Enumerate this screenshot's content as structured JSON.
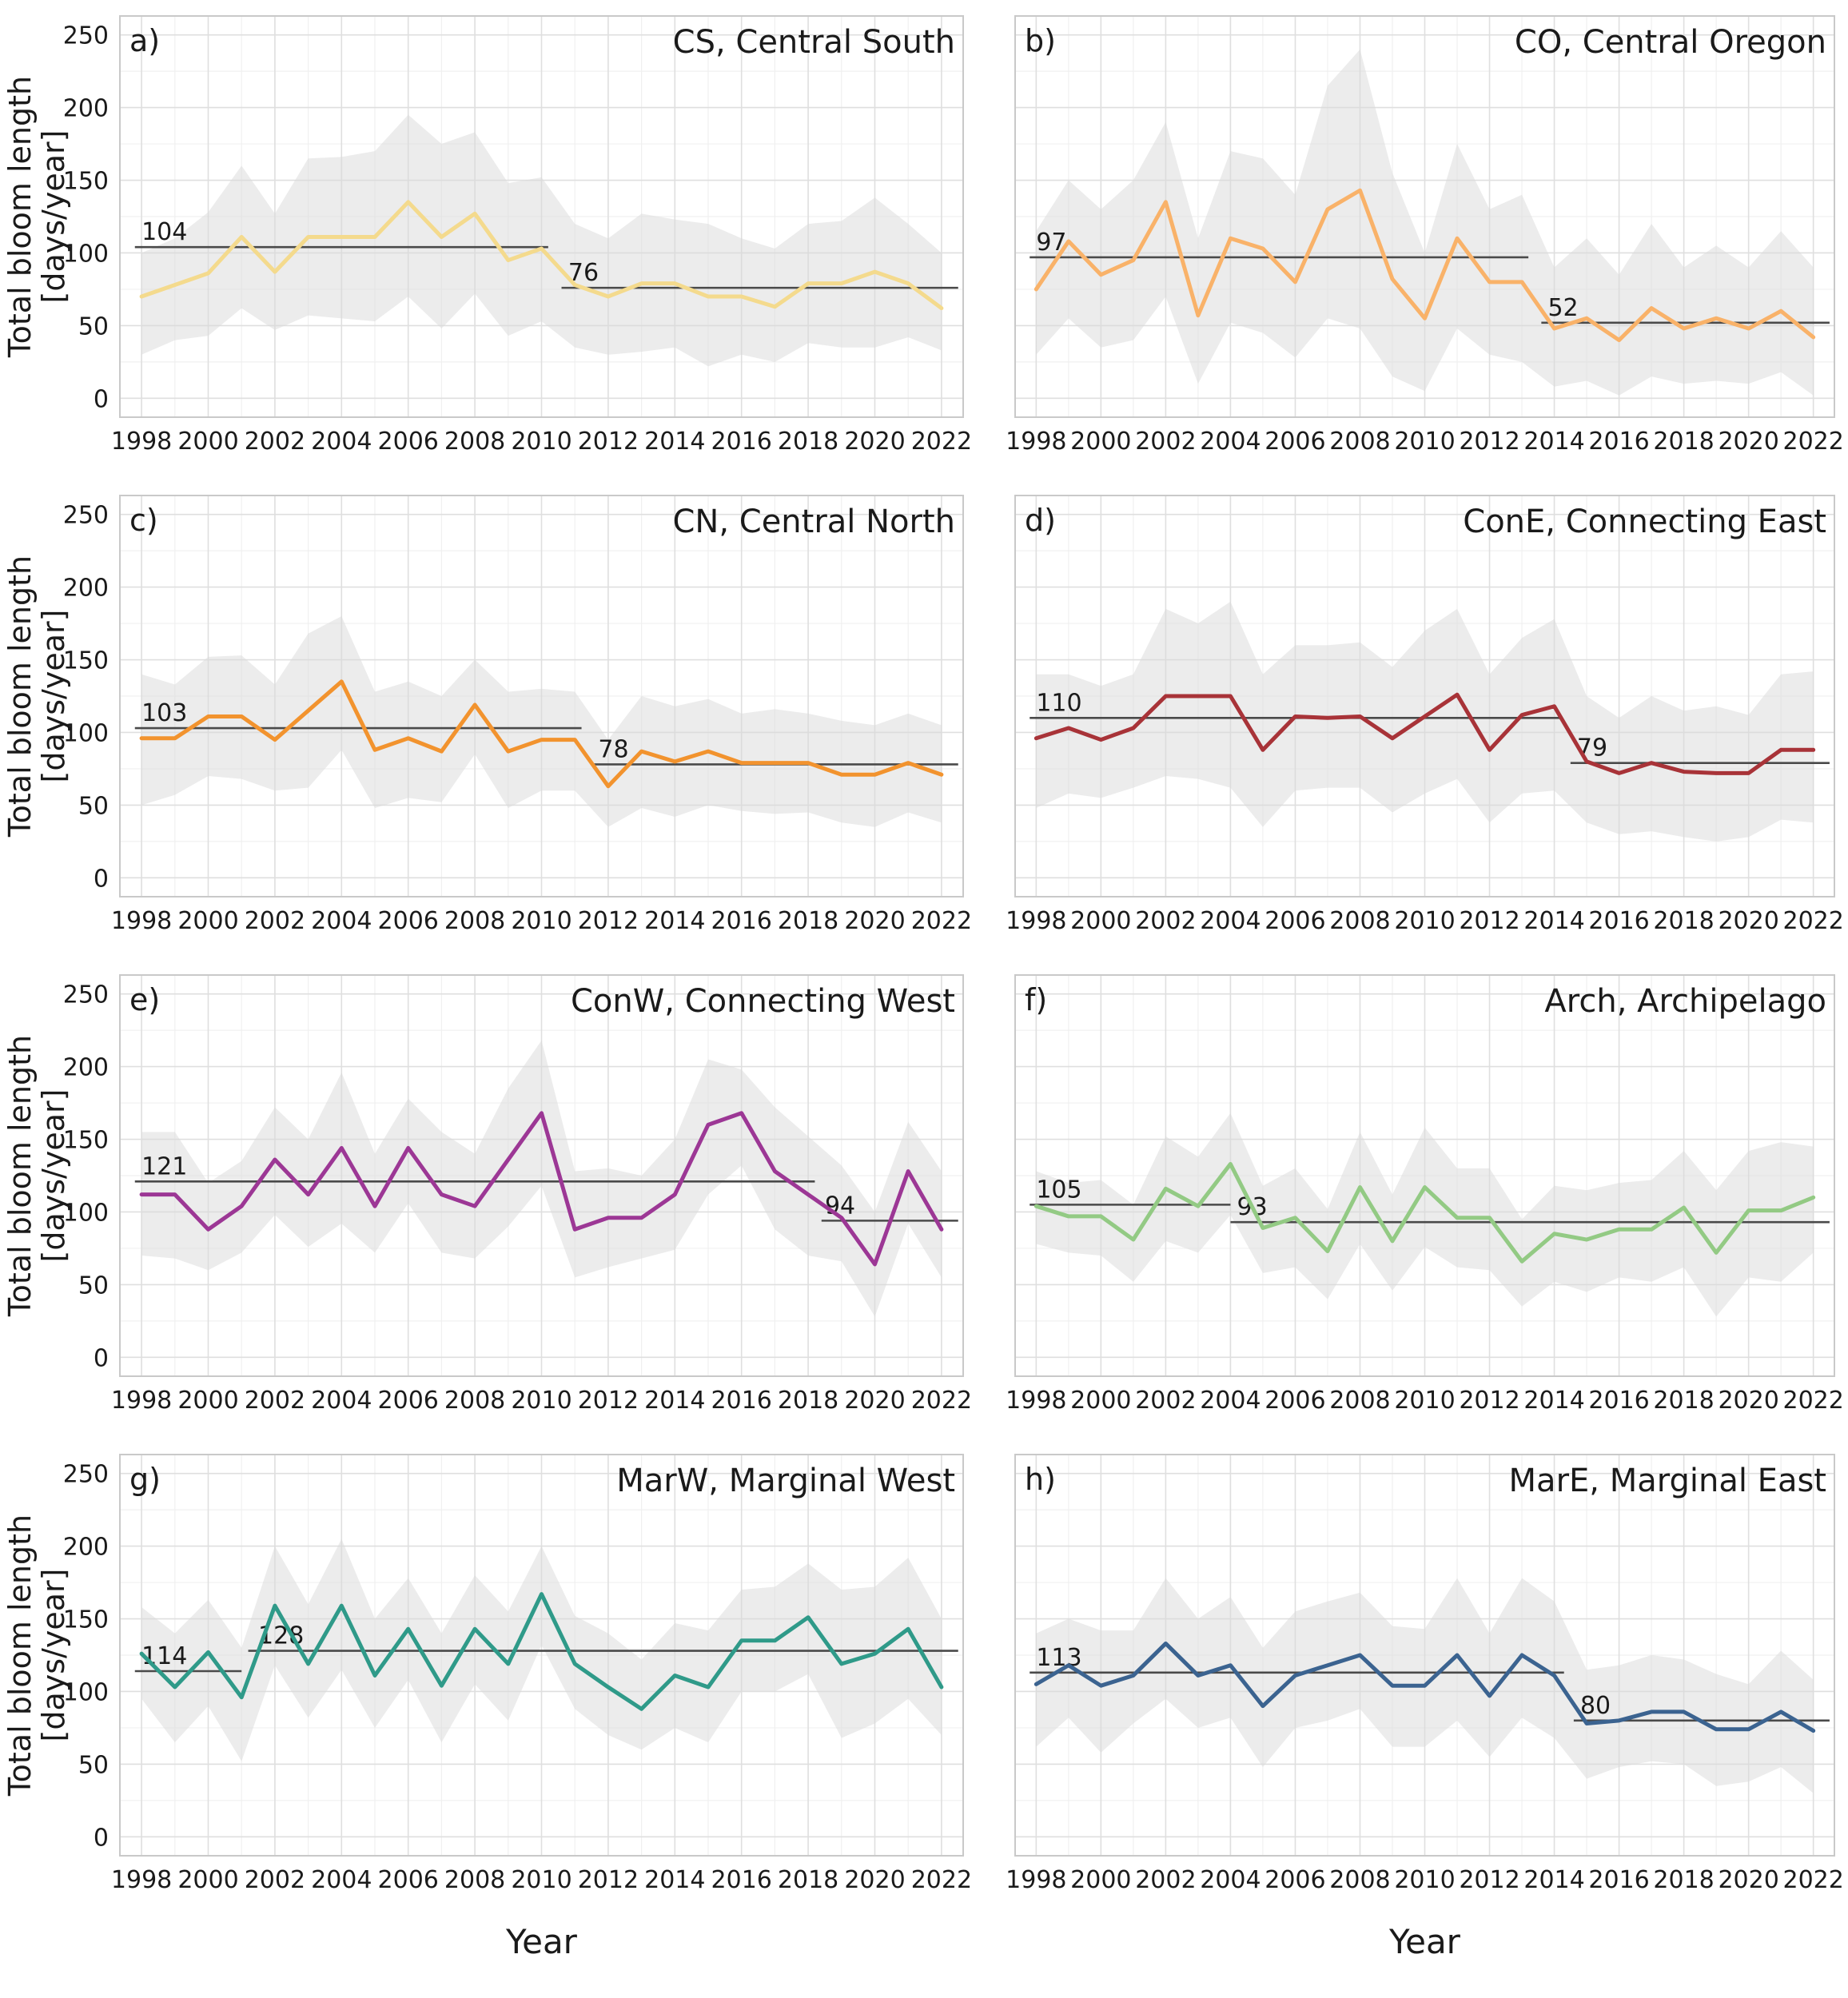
{
  "figure": {
    "xlabel": "Year",
    "ylabel_line1": "Total bloom length",
    "ylabel_line2": "[days/year]"
  },
  "axes": {
    "xlim": [
      1997.35,
      2022.65
    ],
    "ylim": [
      -13,
      263
    ],
    "xticks": [
      1998,
      2000,
      2002,
      2004,
      2006,
      2008,
      2010,
      2012,
      2014,
      2016,
      2018,
      2020,
      2022
    ],
    "yticks": [
      0,
      50,
      100,
      150,
      200,
      250
    ],
    "grid": "on",
    "band_color": "#d9d9d9",
    "mean_line_color": "#4a4a4a",
    "grid_major_color": "#dfdfdf",
    "grid_minor_color": "#f0f0f0",
    "spine_color": "#c9c9c9",
    "text_color": "#1a1a1a"
  },
  "chart_data": [
    {
      "type": "line",
      "letter": "a)",
      "title": "CS, Central South",
      "color": "#f4da8d",
      "x": [
        1998,
        1999,
        2000,
        2001,
        2002,
        2003,
        2004,
        2005,
        2006,
        2007,
        2008,
        2009,
        2010,
        2011,
        2012,
        2013,
        2014,
        2015,
        2016,
        2017,
        2018,
        2019,
        2020,
        2021,
        2022
      ],
      "values": [
        70,
        78,
        86,
        111,
        87,
        111,
        111,
        111,
        135,
        111,
        127,
        95,
        103,
        78,
        70,
        79,
        79,
        70,
        70,
        63,
        79,
        79,
        87,
        79,
        62
      ],
      "band_upper": [
        100,
        110,
        128,
        160,
        127,
        165,
        166,
        170,
        195,
        175,
        183,
        148,
        152,
        120,
        110,
        127,
        123,
        120,
        110,
        103,
        120,
        122,
        138,
        120,
        100
      ],
      "band_lower": [
        30,
        40,
        43,
        62,
        47,
        57,
        55,
        53,
        70,
        48,
        72,
        43,
        53,
        35,
        30,
        32,
        35,
        22,
        30,
        25,
        38,
        35,
        35,
        42,
        33
      ],
      "mean_segments": [
        {
          "label": "104",
          "value": 104,
          "x_start": 1997.8,
          "x_end": 2010.2,
          "label_x": 1998.0
        },
        {
          "label": "76",
          "value": 76,
          "x_start": 2010.6,
          "x_end": 2022.5,
          "label_x": 2010.8
        }
      ]
    },
    {
      "type": "line",
      "letter": "b)",
      "title": "CO, Central Oregon",
      "color": "#f9b269",
      "x": [
        1998,
        1999,
        2000,
        2001,
        2002,
        2003,
        2004,
        2005,
        2006,
        2007,
        2008,
        2009,
        2010,
        2011,
        2012,
        2013,
        2014,
        2015,
        2016,
        2017,
        2018,
        2019,
        2020,
        2021,
        2022
      ],
      "values": [
        75,
        108,
        85,
        95,
        135,
        57,
        110,
        103,
        80,
        130,
        143,
        82,
        55,
        110,
        80,
        80,
        48,
        55,
        40,
        62,
        48,
        55,
        48,
        60,
        42
      ],
      "band_upper": [
        115,
        150,
        130,
        150,
        190,
        110,
        170,
        165,
        140,
        215,
        240,
        155,
        100,
        175,
        130,
        140,
        90,
        110,
        85,
        120,
        90,
        105,
        90,
        115,
        90
      ],
      "band_lower": [
        30,
        55,
        35,
        40,
        70,
        10,
        52,
        45,
        28,
        55,
        48,
        15,
        5,
        48,
        30,
        25,
        8,
        12,
        2,
        15,
        10,
        12,
        10,
        18,
        2
      ],
      "mean_segments": [
        {
          "label": "97",
          "value": 97,
          "x_start": 1997.8,
          "x_end": 2013.2,
          "label_x": 1998.0
        },
        {
          "label": "52",
          "value": 52,
          "x_start": 2013.6,
          "x_end": 2022.5,
          "label_x": 2013.8
        }
      ]
    },
    {
      "type": "line",
      "letter": "c)",
      "title": "CN, Central North",
      "color": "#f2932e",
      "x": [
        1998,
        1999,
        2000,
        2001,
        2002,
        2003,
        2004,
        2005,
        2006,
        2007,
        2008,
        2009,
        2010,
        2011,
        2012,
        2013,
        2014,
        2015,
        2016,
        2017,
        2018,
        2019,
        2020,
        2021,
        2022
      ],
      "values": [
        96,
        96,
        111,
        111,
        95,
        115,
        135,
        88,
        96,
        87,
        119,
        87,
        95,
        95,
        63,
        87,
        80,
        87,
        79,
        79,
        79,
        71,
        71,
        79,
        71
      ],
      "band_upper": [
        140,
        133,
        152,
        153,
        133,
        168,
        180,
        128,
        135,
        125,
        150,
        128,
        130,
        128,
        95,
        125,
        118,
        123,
        113,
        116,
        113,
        108,
        105,
        113,
        105
      ],
      "band_lower": [
        50,
        57,
        70,
        68,
        60,
        62,
        88,
        48,
        55,
        52,
        85,
        48,
        60,
        60,
        35,
        48,
        42,
        50,
        46,
        44,
        45,
        38,
        35,
        45,
        38
      ],
      "mean_segments": [
        {
          "label": "103",
          "value": 103,
          "x_start": 1997.8,
          "x_end": 2011.2,
          "label_x": 1998.0
        },
        {
          "label": "78",
          "value": 78,
          "x_start": 2011.5,
          "x_end": 2022.5,
          "label_x": 2011.7
        }
      ]
    },
    {
      "type": "line",
      "letter": "d)",
      "title": "ConE, Connecting East",
      "color": "#a83338",
      "x": [
        1998,
        1999,
        2000,
        2001,
        2002,
        2003,
        2004,
        2005,
        2006,
        2007,
        2008,
        2009,
        2010,
        2011,
        2012,
        2013,
        2014,
        2015,
        2016,
        2017,
        2018,
        2019,
        2020,
        2021,
        2022
      ],
      "values": [
        96,
        103,
        95,
        103,
        125,
        125,
        125,
        88,
        111,
        110,
        111,
        96,
        111,
        126,
        88,
        112,
        118,
        80,
        72,
        79,
        73,
        72,
        72,
        88,
        88
      ],
      "band_upper": [
        140,
        140,
        132,
        140,
        185,
        175,
        190,
        140,
        160,
        160,
        162,
        145,
        170,
        185,
        140,
        165,
        178,
        125,
        110,
        125,
        115,
        118,
        112,
        140,
        142
      ],
      "band_lower": [
        48,
        58,
        55,
        62,
        70,
        68,
        62,
        35,
        60,
        62,
        62,
        45,
        58,
        68,
        38,
        58,
        60,
        38,
        30,
        32,
        28,
        25,
        28,
        40,
        38
      ],
      "mean_segments": [
        {
          "label": "110",
          "value": 110,
          "x_start": 1997.8,
          "x_end": 2014.2,
          "label_x": 1998.0
        },
        {
          "label": "79",
          "value": 79,
          "x_start": 2014.5,
          "x_end": 2022.5,
          "label_x": 2014.7
        }
      ]
    },
    {
      "type": "line",
      "letter": "e)",
      "title": "ConW, Connecting West",
      "color": "#9c3795",
      "x": [
        1998,
        1999,
        2000,
        2001,
        2002,
        2003,
        2004,
        2005,
        2006,
        2007,
        2008,
        2009,
        2010,
        2011,
        2012,
        2013,
        2014,
        2015,
        2016,
        2017,
        2018,
        2019,
        2020,
        2021,
        2022
      ],
      "values": [
        112,
        112,
        88,
        104,
        136,
        112,
        144,
        104,
        144,
        112,
        104,
        136,
        168,
        88,
        96,
        96,
        112,
        160,
        168,
        128,
        112,
        96,
        64,
        128,
        88
      ],
      "band_upper": [
        155,
        155,
        120,
        135,
        172,
        150,
        196,
        140,
        178,
        155,
        140,
        185,
        218,
        128,
        130,
        125,
        150,
        205,
        198,
        172,
        152,
        132,
        100,
        162,
        128
      ],
      "band_lower": [
        70,
        68,
        60,
        72,
        98,
        76,
        92,
        72,
        106,
        72,
        68,
        90,
        118,
        55,
        62,
        68,
        74,
        112,
        132,
        88,
        70,
        66,
        28,
        92,
        55
      ],
      "mean_segments": [
        {
          "label": "121",
          "value": 121,
          "x_start": 1997.8,
          "x_end": 2018.2,
          "label_x": 1998.0
        },
        {
          "label": "94",
          "value": 94,
          "x_start": 2018.4,
          "x_end": 2022.5,
          "label_x": 2018.5
        }
      ]
    },
    {
      "type": "line",
      "letter": "f)",
      "title": "Arch, Archipelago",
      "color": "#93ca84",
      "x": [
        1998,
        1999,
        2000,
        2001,
        2002,
        2003,
        2004,
        2005,
        2006,
        2007,
        2008,
        2009,
        2010,
        2011,
        2012,
        2013,
        2014,
        2015,
        2016,
        2017,
        2018,
        2019,
        2020,
        2021,
        2022
      ],
      "values": [
        104,
        97,
        97,
        81,
        116,
        104,
        133,
        89,
        96,
        73,
        117,
        80,
        117,
        96,
        96,
        66,
        85,
        81,
        88,
        88,
        103,
        72,
        101,
        101,
        110
      ],
      "band_upper": [
        128,
        120,
        122,
        105,
        152,
        138,
        168,
        118,
        130,
        102,
        155,
        112,
        158,
        130,
        130,
        95,
        118,
        115,
        120,
        122,
        142,
        115,
        142,
        148,
        145
      ],
      "band_lower": [
        78,
        72,
        70,
        52,
        80,
        72,
        98,
        58,
        62,
        40,
        78,
        46,
        76,
        62,
        60,
        35,
        52,
        45,
        55,
        52,
        62,
        28,
        55,
        52,
        72
      ],
      "mean_segments": [
        {
          "label": "105",
          "value": 105,
          "x_start": 1997.8,
          "x_end": 2004.0,
          "label_x": 1998.0
        },
        {
          "label": "93",
          "value": 93,
          "x_start": 2004.0,
          "x_end": 2022.5,
          "label_x": 2004.2
        }
      ]
    },
    {
      "type": "line",
      "letter": "g)",
      "title": "MarW, Marginal West",
      "color": "#2f9a89",
      "x": [
        1998,
        1999,
        2000,
        2001,
        2002,
        2003,
        2004,
        2005,
        2006,
        2007,
        2008,
        2009,
        2010,
        2011,
        2012,
        2013,
        2014,
        2015,
        2016,
        2017,
        2018,
        2019,
        2020,
        2021,
        2022
      ],
      "values": [
        126,
        103,
        127,
        96,
        159,
        119,
        159,
        111,
        143,
        104,
        143,
        119,
        167,
        119,
        103,
        88,
        111,
        103,
        135,
        135,
        151,
        119,
        126,
        143,
        103
      ],
      "band_upper": [
        158,
        140,
        163,
        130,
        200,
        160,
        205,
        150,
        178,
        140,
        180,
        155,
        200,
        152,
        140,
        122,
        147,
        142,
        170,
        172,
        188,
        170,
        172,
        192,
        150
      ],
      "band_lower": [
        95,
        65,
        90,
        52,
        118,
        82,
        115,
        75,
        108,
        65,
        105,
        80,
        132,
        88,
        70,
        60,
        75,
        65,
        100,
        100,
        112,
        68,
        78,
        95,
        70
      ],
      "mean_segments": [
        {
          "label": "114",
          "value": 114,
          "x_start": 1997.8,
          "x_end": 2001.0,
          "label_x": 1998.0
        },
        {
          "label": "128",
          "value": 128,
          "x_start": 2001.2,
          "x_end": 2022.5,
          "label_x": 2001.5
        }
      ]
    },
    {
      "type": "line",
      "letter": "h)",
      "title": "MarE, Marginal East",
      "color": "#3b6390",
      "x": [
        1998,
        1999,
        2000,
        2001,
        2002,
        2003,
        2004,
        2005,
        2006,
        2007,
        2008,
        2009,
        2010,
        2011,
        2012,
        2013,
        2014,
        2015,
        2016,
        2017,
        2018,
        2019,
        2020,
        2021,
        2022
      ],
      "values": [
        105,
        118,
        104,
        111,
        133,
        111,
        118,
        90,
        111,
        118,
        125,
        104,
        104,
        125,
        97,
        125,
        111,
        78,
        80,
        86,
        86,
        74,
        74,
        86,
        73
      ],
      "band_upper": [
        140,
        150,
        142,
        142,
        178,
        150,
        165,
        130,
        155,
        162,
        168,
        145,
        143,
        178,
        140,
        178,
        162,
        115,
        118,
        125,
        122,
        112,
        105,
        128,
        108
      ],
      "band_lower": [
        62,
        82,
        58,
        78,
        95,
        75,
        82,
        48,
        75,
        80,
        88,
        62,
        62,
        80,
        55,
        82,
        68,
        40,
        48,
        52,
        50,
        35,
        38,
        48,
        30
      ],
      "mean_segments": [
        {
          "label": "113",
          "value": 113,
          "x_start": 1997.8,
          "x_end": 2014.3,
          "label_x": 1998.0
        },
        {
          "label": "80",
          "value": 80,
          "x_start": 2014.6,
          "x_end": 2022.5,
          "label_x": 2014.8
        }
      ]
    }
  ]
}
